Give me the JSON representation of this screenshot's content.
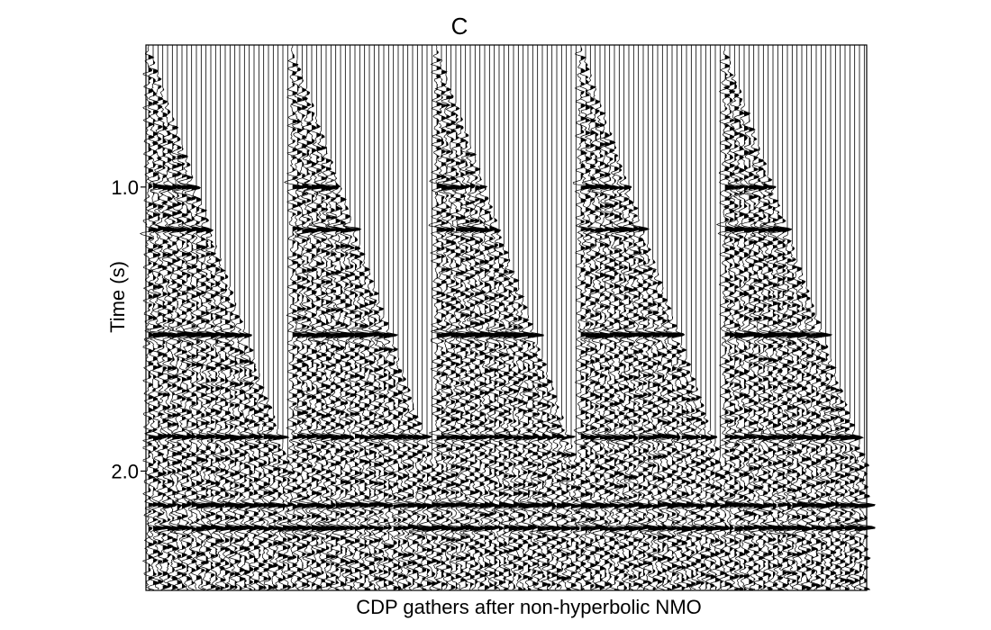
{
  "panel_letter": "C",
  "caption": "CDP gathers after non-hyperbolic NMO",
  "chart_data": {
    "type": "seismic-wiggle",
    "title": "C",
    "xlabel": "CDP gathers after non-hyperbolic NMO",
    "ylabel": "Time (s)",
    "ylim": [
      0.5,
      2.42
    ],
    "y_inverted": true,
    "yticks": [
      {
        "value": 1.0,
        "label": "1.0"
      },
      {
        "value": 2.0,
        "label": "2.0"
      }
    ],
    "gathers": 5,
    "traces_per_gather": 30,
    "mute_start_s": 0.5,
    "mute_end_s": 1.95,
    "reflectors_s": [
      1.0,
      1.15,
      1.52,
      1.88,
      2.12,
      2.2
    ],
    "grid": false,
    "colors": {
      "trace": "#000000",
      "fill": "#000000",
      "background": "#ffffff"
    }
  }
}
